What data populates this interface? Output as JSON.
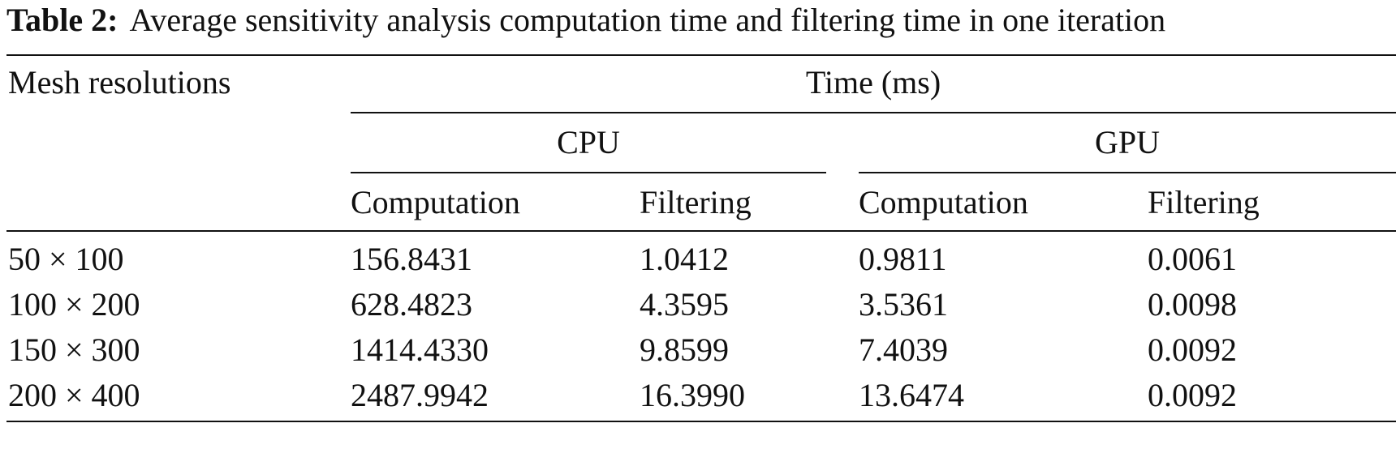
{
  "caption": {
    "label": "Table 2:",
    "text": "Average sensitivity analysis computation time and filtering time in one iteration"
  },
  "header": {
    "row_label": "Mesh resolutions",
    "group": "Time (ms)",
    "cpu": "CPU",
    "gpu": "GPU",
    "columns": [
      "Computation",
      "Filtering",
      "Computation",
      "Filtering"
    ]
  },
  "rows": [
    {
      "resolution": "50 × 100",
      "cells": [
        "156.8431",
        "1.0412",
        "0.9811",
        "0.0061"
      ]
    },
    {
      "resolution": "100 × 200",
      "cells": [
        "628.4823",
        "4.3595",
        "3.5361",
        "0.0098"
      ]
    },
    {
      "resolution": "150 × 300",
      "cells": [
        "1414.4330",
        "9.8599",
        "7.4039",
        "0.0092"
      ]
    },
    {
      "resolution": "200 × 400",
      "cells": [
        "2487.9942",
        "16.3990",
        "13.6474",
        "0.0092"
      ]
    }
  ]
}
